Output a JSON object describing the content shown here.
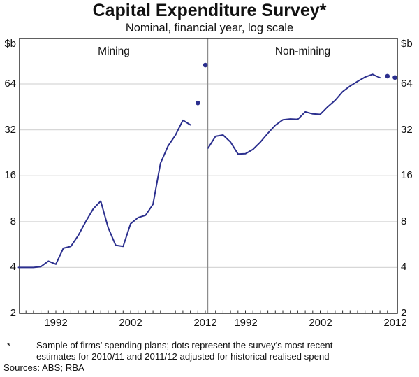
{
  "chart_data": {
    "type": "line",
    "title": "Capital Expenditure Survey*",
    "subtitle": "Nominal, financial year, log scale",
    "unit_label": "$b",
    "scale": "log2",
    "ylim": [
      2,
      128
    ],
    "grid": true,
    "y_ticks": [
      2,
      4,
      8,
      16,
      32,
      64
    ],
    "x_tick_label_years": [
      1992,
      2002,
      2012
    ],
    "years": [
      1987,
      1988,
      1989,
      1990,
      1991,
      1992,
      1993,
      1994,
      1995,
      1996,
      1997,
      1998,
      1999,
      2000,
      2001,
      2002,
      2003,
      2004,
      2005,
      2006,
      2007,
      2008,
      2009,
      2010
    ],
    "panels": [
      {
        "title": "Mining",
        "values": [
          4.0,
          4.0,
          4.0,
          4.05,
          4.4,
          4.2,
          5.35,
          5.5,
          6.5,
          8.0,
          9.7,
          10.9,
          7.3,
          5.6,
          5.5,
          7.75,
          8.5,
          8.8,
          10.4,
          19.3,
          25,
          29.5,
          37,
          34.5
        ],
        "dots": [
          {
            "year": 2011,
            "value": 48
          },
          {
            "year": 2012,
            "value": 85
          }
        ]
      },
      {
        "title": "Non-mining",
        "values": [
          24.3,
          29.0,
          29.6,
          26.6,
          22.2,
          22.3,
          23.8,
          26.6,
          30.4,
          34.3,
          37.2,
          37.7,
          37.5,
          42.0,
          40.7,
          40.4,
          45.3,
          50,
          57,
          62,
          66.5,
          71,
          74,
          70.3
        ],
        "dots": [
          {
            "year": 2011,
            "value": 72
          },
          {
            "year": 2012,
            "value": 70.5
          }
        ]
      }
    ],
    "line_color": "#2b2f8e",
    "dot_color": "#2b2f8e",
    "grid_color": "#d7d7d7",
    "frame_color": "#2b2b2b",
    "divider_color": "#8c8c8c"
  },
  "footnote": {
    "marker": "*",
    "line1": "Sample of firms’ spending plans; dots represent the survey’s most recent",
    "line2": "estimates for 2010/11 and 2011/12 adjusted for historical realised spend",
    "sources": "Sources: ABS; RBA"
  }
}
